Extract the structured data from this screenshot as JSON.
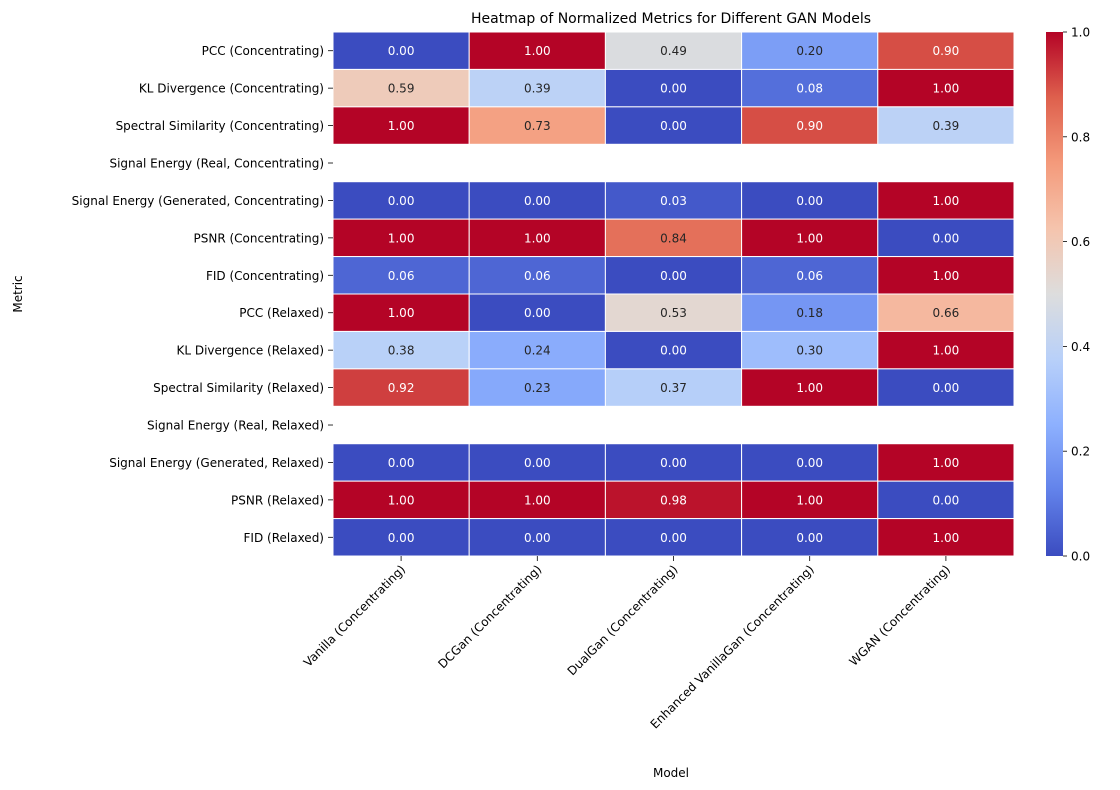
{
  "chart_data": {
    "type": "heatmap",
    "title": "Heatmap of Normalized Metrics for Different GAN Models",
    "xlabel": "Model",
    "ylabel": "Metric",
    "columns": [
      "Vanilla (Concentrating)",
      "DCGan (Concentrating)",
      "DualGan (Concentrating)",
      "Enhanced VanillaGan (Concentrating)",
      "WGAN (Concentrating)"
    ],
    "rows": [
      "PCC (Concentrating)",
      "KL Divergence (Concentrating)",
      "Spectral Similarity (Concentrating)",
      "Signal Energy (Real, Concentrating)",
      "Signal Energy (Generated, Concentrating)",
      "PSNR (Concentrating)",
      "FID (Concentrating)",
      "PCC (Relaxed)",
      "KL Divergence (Relaxed)",
      "Spectral Similarity (Relaxed)",
      "Signal Energy (Real, Relaxed)",
      "Signal Energy (Generated, Relaxed)",
      "PSNR (Relaxed)",
      "FID (Relaxed)"
    ],
    "values": [
      [
        0.0,
        1.0,
        0.49,
        0.2,
        0.9
      ],
      [
        0.59,
        0.39,
        0.0,
        0.08,
        1.0
      ],
      [
        1.0,
        0.73,
        0.0,
        0.9,
        0.39
      ],
      [
        null,
        null,
        null,
        null,
        null
      ],
      [
        0.0,
        0.0,
        0.03,
        0.0,
        1.0
      ],
      [
        1.0,
        1.0,
        0.84,
        1.0,
        0.0
      ],
      [
        0.06,
        0.06,
        0.0,
        0.06,
        1.0
      ],
      [
        1.0,
        0.0,
        0.53,
        0.18,
        0.66
      ],
      [
        0.38,
        0.24,
        0.0,
        0.3,
        1.0
      ],
      [
        0.92,
        0.23,
        0.37,
        1.0,
        0.0
      ],
      [
        null,
        null,
        null,
        null,
        null
      ],
      [
        0.0,
        0.0,
        0.0,
        0.0,
        1.0
      ],
      [
        1.0,
        1.0,
        0.98,
        1.0,
        0.0
      ],
      [
        0.0,
        0.0,
        0.0,
        0.0,
        1.0
      ]
    ],
    "value_format": "0.00",
    "colormap": "coolwarm",
    "colorbar": {
      "range": [
        0.0,
        1.0
      ],
      "ticks": [
        "0.0",
        "0.2",
        "0.4",
        "0.6",
        "0.8",
        "1.0"
      ]
    },
    "grid": false,
    "legend": "colorbar-right"
  }
}
